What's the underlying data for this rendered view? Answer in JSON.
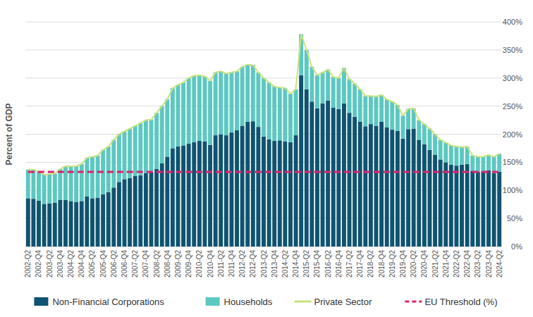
{
  "chart_data": {
    "type": "bar",
    "stacked": true,
    "grid": true,
    "legend": "bottom",
    "y_label": "Percent of GDP",
    "ylim": [
      0,
      400
    ],
    "yticks": [
      {
        "value": 0,
        "label": "0%"
      },
      {
        "value": 50,
        "label": "50%"
      },
      {
        "value": 100,
        "label": "100%"
      },
      {
        "value": 150,
        "label": "150%"
      },
      {
        "value": 200,
        "label": "200%"
      },
      {
        "value": 250,
        "label": "250%"
      },
      {
        "value": 300,
        "label": "300%"
      },
      {
        "value": 350,
        "label": "350%"
      },
      {
        "value": 400,
        "label": "400%"
      }
    ],
    "categories": [
      "2002-Q2",
      null,
      "2002-Q4",
      null,
      "2003-Q2",
      null,
      "2003-Q4",
      null,
      "2004-Q2",
      null,
      "2004-Q4",
      null,
      "2005-Q2",
      null,
      "2005-Q4",
      null,
      "2006-Q2",
      null,
      "2006-Q4",
      null,
      "2007-Q2",
      null,
      "2007-Q4",
      null,
      "2008-Q2",
      null,
      "2008-Q4",
      null,
      "2009-Q2",
      null,
      "2009-Q4",
      null,
      "2010-Q2",
      null,
      "2010-Q4",
      null,
      "2011-Q2",
      null,
      "2011-Q4",
      null,
      "2012-Q2",
      null,
      "2012-Q4",
      null,
      "2013-Q2",
      null,
      "2013-Q4",
      null,
      "2014-Q2",
      null,
      "2014-Q4",
      null,
      "2015-Q2",
      null,
      "2015-Q4",
      null,
      "2016-Q2",
      null,
      "2016-Q4",
      null,
      "2017-Q2",
      null,
      "2017-Q4",
      null,
      "2018-Q2",
      null,
      "2018-Q4",
      null,
      "2019-Q2",
      null,
      "2019-Q4",
      null,
      "2020-Q2",
      null,
      "2020-Q4",
      null,
      "2021-Q2",
      null,
      "2021-Q4",
      null,
      "2022-Q2",
      null,
      "2022-Q4",
      null,
      "2023-Q2",
      null,
      "2023-Q4",
      null,
      "2024-Q2"
    ],
    "series": [
      {
        "name": "Non-Financial Corporations",
        "type": "bar",
        "color": "#0e5470",
        "values": [
          86,
          85,
          82,
          76,
          77,
          78,
          83,
          83,
          81,
          79,
          81,
          89,
          86,
          87,
          93,
          97,
          105,
          115,
          120,
          122,
          126,
          127,
          131,
          132,
          138,
          148,
          160,
          175,
          178,
          180,
          183,
          186,
          188,
          187,
          181,
          198,
          200,
          198,
          203,
          207,
          215,
          222,
          223,
          213,
          196,
          191,
          188,
          189,
          187,
          186,
          198,
          305,
          280,
          258,
          246,
          255,
          260,
          247,
          245,
          255,
          238,
          231,
          222,
          214,
          218,
          215,
          222,
          212,
          208,
          206,
          192,
          209,
          210,
          190,
          182,
          172,
          163,
          155,
          150,
          146,
          144,
          146,
          147,
          135,
          133,
          134,
          136,
          131,
          133
        ]
      },
      {
        "name": "Households",
        "type": "bar",
        "color": "#5cc8c1",
        "values": [
          51,
          52,
          51,
          52,
          52,
          52,
          55,
          60,
          62,
          64,
          66,
          69,
          74,
          75,
          79,
          81,
          85,
          85,
          85,
          88,
          89,
          93,
          94,
          94,
          100,
          102,
          102,
          107,
          110,
          112,
          117,
          118,
          117,
          116,
          114,
          112,
          112,
          110,
          107,
          105,
          105,
          102,
          100,
          97,
          104,
          101,
          97,
          94,
          95,
          86,
          82,
          73,
          70,
          62,
          59,
          55,
          55,
          55,
          55,
          63,
          60,
          59,
          58,
          54,
          50,
          52,
          48,
          50,
          50,
          46,
          41,
          36,
          36,
          35,
          36,
          38,
          37,
          35,
          35,
          34,
          34,
          31,
          31,
          27,
          27,
          26,
          27,
          29,
          32
        ]
      },
      {
        "name": "Private Sector",
        "type": "line",
        "color": "#c9e27f",
        "line_style": "solid",
        "values": [
          137,
          137,
          133,
          128,
          129,
          130,
          138,
          143,
          143,
          143,
          147,
          158,
          160,
          162,
          172,
          178,
          190,
          200,
          205,
          210,
          215,
          220,
          225,
          226,
          238,
          250,
          262,
          282,
          288,
          292,
          300,
          304,
          305,
          303,
          295,
          310,
          312,
          308,
          310,
          312,
          320,
          324,
          323,
          310,
          300,
          292,
          285,
          283,
          282,
          272,
          280,
          378,
          350,
          320,
          305,
          310,
          315,
          302,
          300,
          318,
          298,
          290,
          280,
          268,
          268,
          267,
          270,
          262,
          258,
          252,
          233,
          245,
          246,
          225,
          218,
          210,
          200,
          190,
          185,
          180,
          178,
          177,
          178,
          162,
          160,
          160,
          163,
          160,
          165
        ]
      },
      {
        "name": "EU Threshold (%)",
        "type": "line",
        "color": "#d7246f",
        "line_style": "dashed",
        "values": [
          133,
          133,
          133,
          133,
          133,
          133,
          133,
          133,
          133,
          133,
          133,
          133,
          133,
          133,
          133,
          133,
          133,
          133,
          133,
          133,
          133,
          133,
          133,
          133,
          133,
          133,
          133,
          133,
          133,
          133,
          133,
          133,
          133,
          133,
          133,
          133,
          133,
          133,
          133,
          133,
          133,
          133,
          133,
          133,
          133,
          133,
          133,
          133,
          133,
          133,
          133,
          133,
          133,
          133,
          133,
          133,
          133,
          133,
          133,
          133,
          133,
          133,
          133,
          133,
          133,
          133,
          133,
          133,
          133,
          133,
          133,
          133,
          133,
          133,
          133,
          133,
          133,
          133,
          133,
          133,
          133,
          133,
          133,
          133,
          133,
          133,
          133,
          133,
          133
        ]
      }
    ]
  }
}
